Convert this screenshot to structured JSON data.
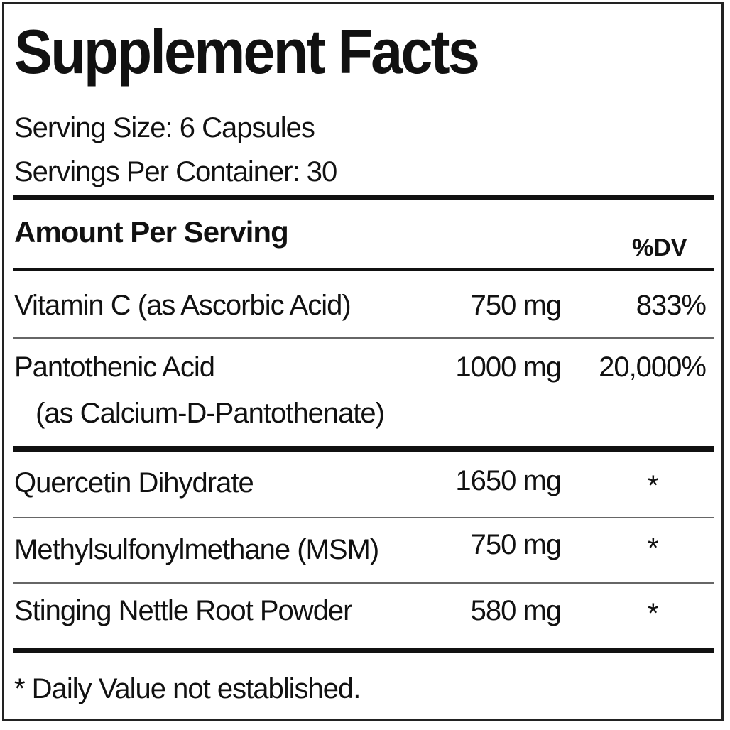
{
  "title": "Supplement Facts",
  "serving_size": "Serving Size: 6 Capsules",
  "servings_per_container": "Servings Per Container: 30",
  "header": {
    "amount": "Amount Per Serving",
    "dv": "%DV"
  },
  "rows": [
    {
      "name": "Vitamin C (as Ascorbic Acid)",
      "amount": "750 mg",
      "dv": "833%"
    },
    {
      "name": "Pantothenic Acid",
      "name2": "(as Calcium-D-Pantothenate)",
      "amount": "1000 mg",
      "dv": "20,000%"
    },
    {
      "name": "Quercetin Dihydrate",
      "amount": "1650 mg",
      "dv": "*"
    },
    {
      "name": "Methylsulfonylmethane (MSM)",
      "amount": "750 mg",
      "dv": "*"
    },
    {
      "name": "Stinging Nettle Root Powder",
      "amount": "580 mg",
      "dv": "*"
    }
  ],
  "footnote": "* Daily Value not established."
}
